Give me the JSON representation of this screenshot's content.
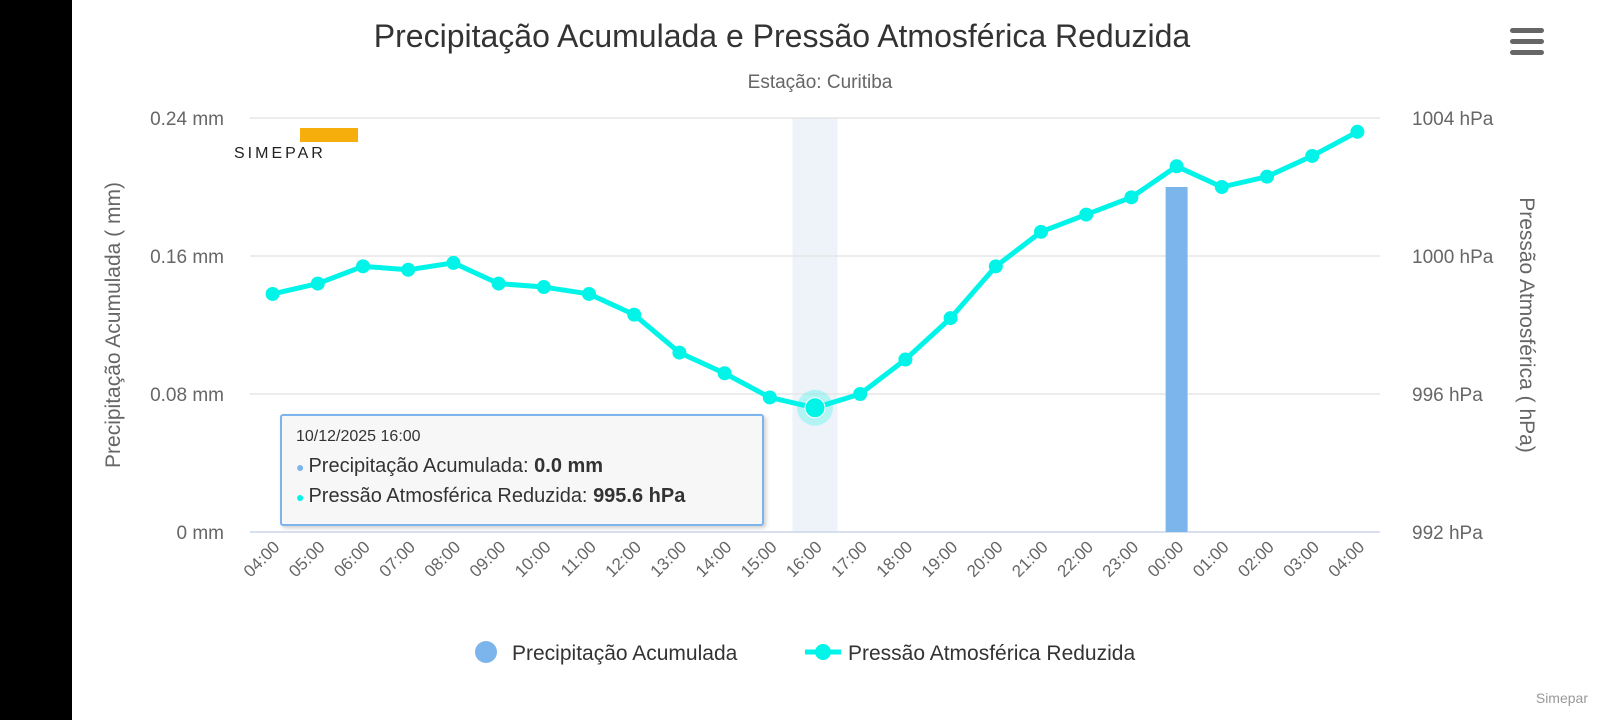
{
  "chart_data": {
    "type": "bar+line",
    "title": "Precipitação Acumulada e Pressão Atmosférica Reduzida",
    "subtitle": "Estação: Curitiba",
    "categories": [
      "04:00",
      "05:00",
      "06:00",
      "07:00",
      "08:00",
      "09:00",
      "10:00",
      "11:00",
      "12:00",
      "13:00",
      "14:00",
      "15:00",
      "16:00",
      "17:00",
      "18:00",
      "19:00",
      "20:00",
      "21:00",
      "22:00",
      "23:00",
      "00:00",
      "01:00",
      "02:00",
      "03:00",
      "04:00"
    ],
    "y_left": {
      "label": "Precipitação Acumulada ( mm)",
      "ticks": [
        "0 mm",
        "0.08 mm",
        "0.16 mm",
        "0.24 mm"
      ],
      "range": [
        0,
        0.24
      ]
    },
    "y_right": {
      "label": "Pressão Atmosférica ( hPa)",
      "ticks": [
        "992 hPa",
        "996 hPa",
        "1000 hPa",
        "1004 hPa"
      ],
      "range": [
        992,
        1004
      ]
    },
    "series": [
      {
        "name": "Precipitação Acumulada",
        "type": "bar",
        "axis": "left",
        "color": "#7cb5ec",
        "values": [
          0,
          0,
          0,
          0,
          0,
          0,
          0,
          0,
          0,
          0,
          0,
          0,
          0,
          0,
          0,
          0,
          0,
          0,
          0,
          0,
          0.2,
          0,
          0,
          0,
          0
        ]
      },
      {
        "name": "Pressão Atmosférica Reduzida",
        "type": "line",
        "axis": "right",
        "color": "#00f5e8",
        "values": [
          998.9,
          999.2,
          999.7,
          999.6,
          999.8,
          999.2,
          999.1,
          998.9,
          998.3,
          997.2,
          996.6,
          995.9,
          995.6,
          996.0,
          997.0,
          998.2,
          999.7,
          1000.7,
          1001.2,
          1001.7,
          1002.6,
          1002.0,
          1002.3,
          1002.9,
          1003.6
        ]
      }
    ],
    "legend": "bottom-center",
    "grid": true,
    "highlight_index": 12
  },
  "tooltip": {
    "date": "10/12/2025 16:00",
    "precip_label": "Precipitação Acumulada: ",
    "precip_value": "0.0 mm",
    "pressure_label": "Pressão Atmosférica Reduzida: ",
    "pressure_value": "995.6 hPa"
  },
  "logo": "Simepar",
  "credit": "Simepar"
}
